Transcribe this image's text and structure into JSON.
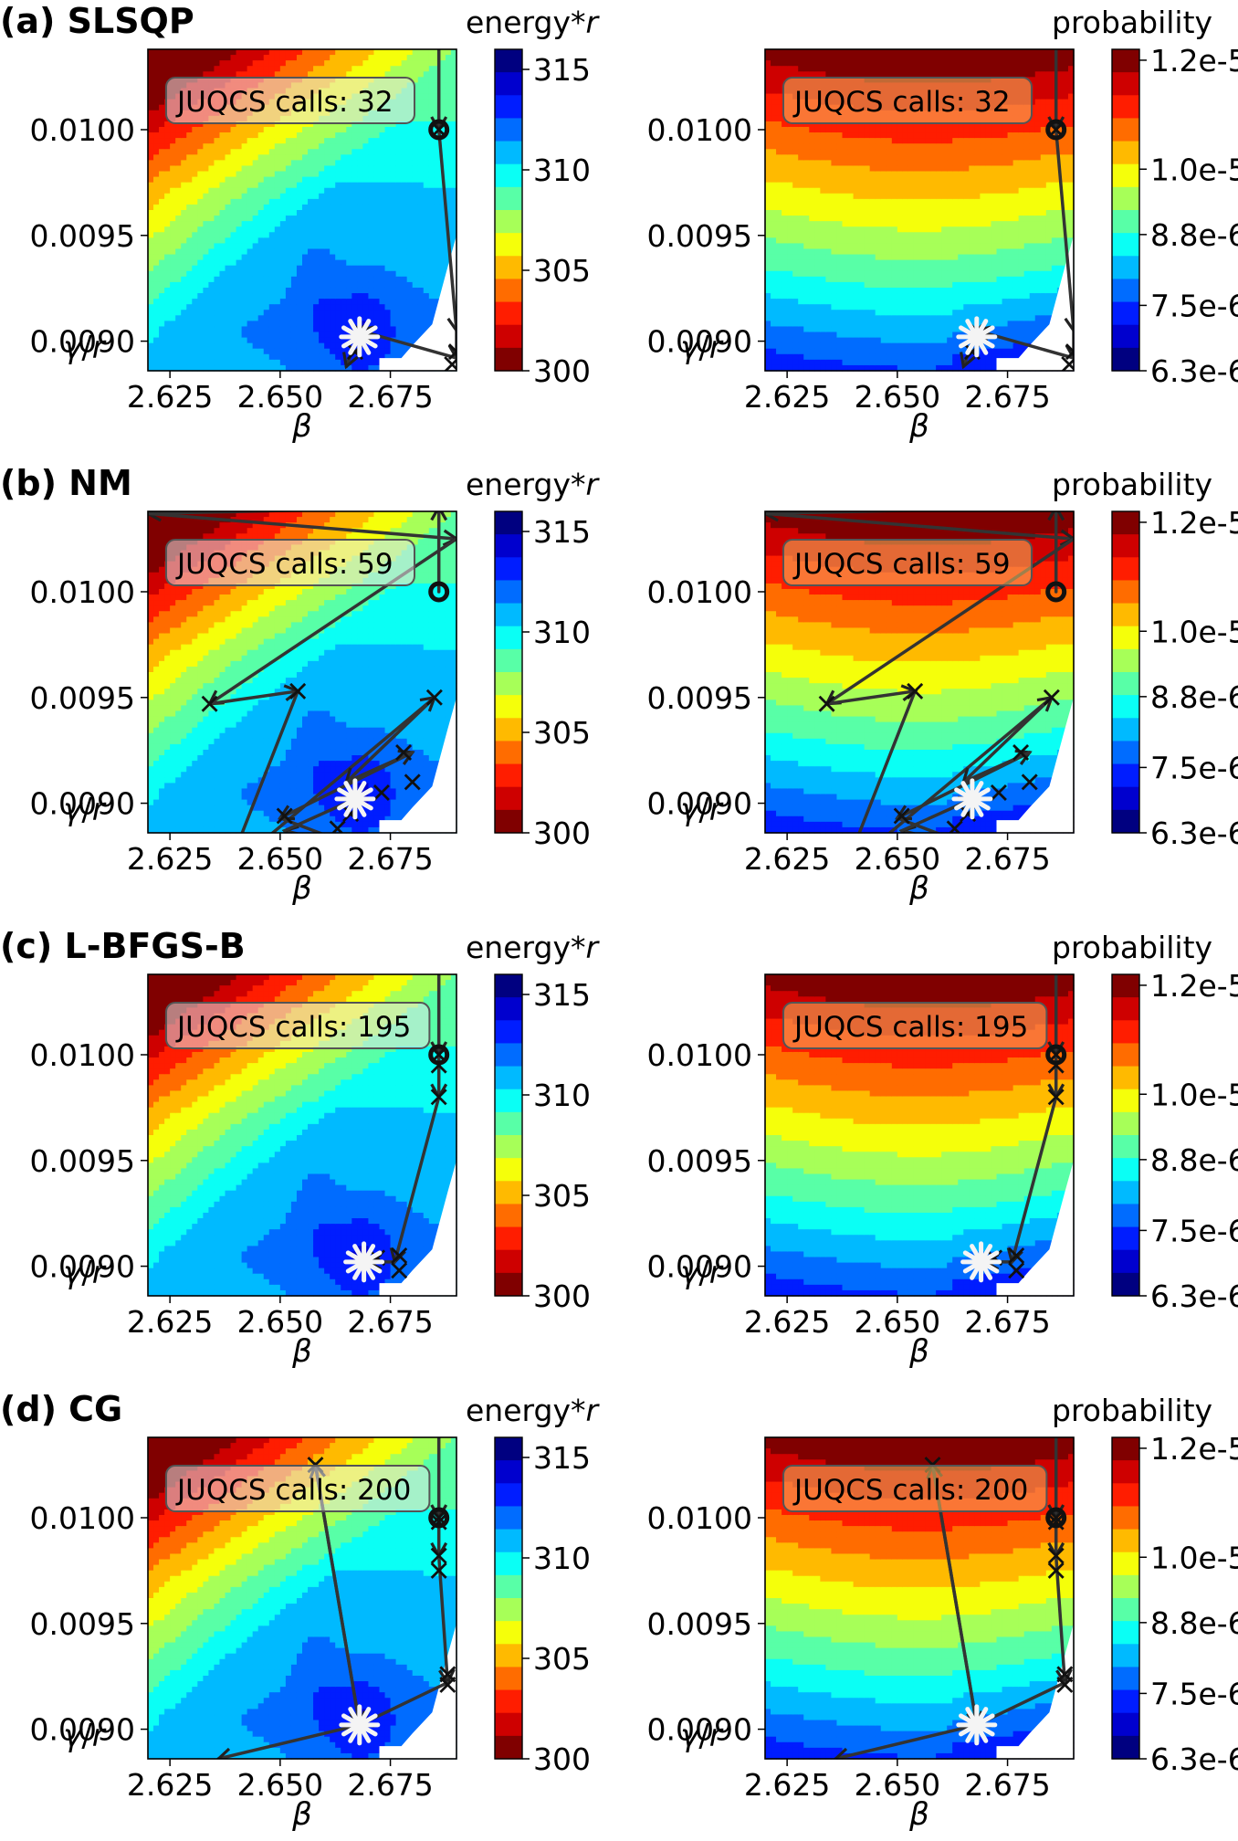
{
  "figure": {
    "rows": [
      {
        "label": "(a)",
        "method": "SLSQP",
        "calls_text": "JUQCS calls: 32"
      },
      {
        "label": "(b)",
        "method": "NM",
        "calls_text": "JUQCS calls: 59"
      },
      {
        "label": "(c)",
        "method": "L-BFGS-B",
        "calls_text": "JUQCS calls: 195"
      },
      {
        "label": "(d)",
        "method": "CG",
        "calls_text": "JUQCS calls: 200"
      }
    ],
    "energy_panel": {
      "colorbar_title_main": "energy*",
      "colorbar_title_italic": "r",
      "colorbar_ticks": [
        "315",
        "310",
        "305",
        "300"
      ],
      "colorbar_values": [
        315,
        310,
        305,
        300
      ],
      "colorbar_range": [
        300,
        316
      ],
      "colormap": "jet_r"
    },
    "probability_panel": {
      "colorbar_title": "probability",
      "colorbar_ticks": [
        "1.2e-5",
        "1.0e-5",
        "8.8e-6",
        "7.5e-6",
        "6.3e-6"
      ],
      "colorbar_values": [
        1.2e-05,
        1e-05,
        8.8e-06,
        7.5e-06,
        6.3e-06
      ],
      "colorbar_range": [
        6.3e-06,
        1.22e-05
      ],
      "colormap": "jet"
    },
    "x_axis": {
      "label": "β",
      "ticks": [
        "2.625",
        "2.650",
        "2.675"
      ],
      "tick_values": [
        2.625,
        2.65,
        2.675
      ],
      "range": [
        2.62,
        2.69
      ]
    },
    "y_axis": {
      "label_main": "γ/",
      "label_italic": "r",
      "ticks": [
        "0.0100",
        "0.0095",
        "0.0090"
      ],
      "tick_values": [
        0.01,
        0.0095,
        0.009
      ],
      "range": [
        0.00886,
        0.01038
      ]
    }
  },
  "chart_data": {
    "type": "contour",
    "surface_note_values": {
      "energy_min_location": [
        2.667,
        0.00902
      ],
      "energy_min": 302,
      "energy_max": 316
    },
    "trajectories": {
      "SLSQP": {
        "calls": 32,
        "start": [
          2.686,
          0.01
        ],
        "path": [
          [
            2.686,
            0.0104
          ],
          [
            2.686,
            0.01
          ],
          [
            2.69,
            0.00905
          ],
          [
            2.69,
            0.00892
          ],
          [
            2.668,
            0.00905
          ],
          [
            2.665,
            0.00888
          ]
        ],
        "markers": [
          [
            2.686,
            0.01
          ],
          [
            2.69,
            0.00895
          ],
          [
            2.689,
            0.00889
          ],
          [
            2.668,
            0.00905
          ],
          [
            2.667,
            0.00895
          ]
        ],
        "minimum": [
          2.668,
          0.00902
        ]
      },
      "NM": {
        "calls": 59,
        "start": [
          2.686,
          0.01
        ],
        "path": [
          [
            2.686,
            0.01
          ],
          [
            2.686,
            0.0104
          ],
          [
            2.62,
            0.01037
          ],
          [
            2.69,
            0.01025
          ],
          [
            2.634,
            0.00947
          ],
          [
            2.654,
            0.00953
          ],
          [
            2.638,
            0.00868
          ],
          [
            2.685,
            0.0095
          ],
          [
            2.665,
            0.0091
          ],
          [
            2.68,
            0.00924
          ],
          [
            2.65,
            0.00893
          ],
          [
            2.669,
            0.00878
          ],
          [
            2.651,
            0.00887
          ],
          [
            2.667,
            0.00902
          ]
        ],
        "markers": [
          [
            2.634,
            0.00947
          ],
          [
            2.654,
            0.00953
          ],
          [
            2.638,
            0.00868
          ],
          [
            2.651,
            0.00894
          ],
          [
            2.685,
            0.0095
          ],
          [
            2.678,
            0.00924
          ],
          [
            2.68,
            0.0091
          ],
          [
            2.67,
            0.00878
          ],
          [
            2.663,
            0.00888
          ],
          [
            2.666,
            0.00895
          ],
          [
            2.673,
            0.00905
          ],
          [
            2.652,
            0.00868
          ]
        ],
        "minimum": [
          2.667,
          0.00902
        ]
      },
      "L-BFGS-B": {
        "calls": 195,
        "start": [
          2.686,
          0.01
        ],
        "path": [
          [
            2.686,
            0.0104
          ],
          [
            2.686,
            0.01
          ],
          [
            2.686,
            0.0098
          ],
          [
            2.676,
            0.00902
          ],
          [
            2.67,
            0.00902
          ]
        ],
        "markers": [
          [
            2.686,
            0.01
          ],
          [
            2.686,
            0.00995
          ],
          [
            2.686,
            0.0098
          ],
          [
            2.677,
            0.00905
          ],
          [
            2.677,
            0.00898
          ],
          [
            2.672,
            0.00904
          ]
        ],
        "minimum": [
          2.669,
          0.00902
        ]
      },
      "CG": {
        "calls": 200,
        "start": [
          2.686,
          0.01
        ],
        "path": [
          [
            2.686,
            0.0104
          ],
          [
            2.686,
            0.01
          ],
          [
            2.686,
            0.00982
          ],
          [
            2.688,
            0.00922
          ],
          [
            2.668,
            0.00902
          ],
          [
            2.658,
            0.01025
          ],
          [
            2.668,
            0.00902
          ],
          [
            2.636,
            0.00886
          ]
        ],
        "markers": [
          [
            2.686,
            0.01
          ],
          [
            2.686,
            0.00998
          ],
          [
            2.686,
            0.00982
          ],
          [
            2.686,
            0.00975
          ],
          [
            2.688,
            0.00926
          ],
          [
            2.688,
            0.00921
          ],
          [
            2.658,
            0.01025
          ]
        ],
        "minimum": [
          2.668,
          0.00902
        ]
      }
    }
  }
}
